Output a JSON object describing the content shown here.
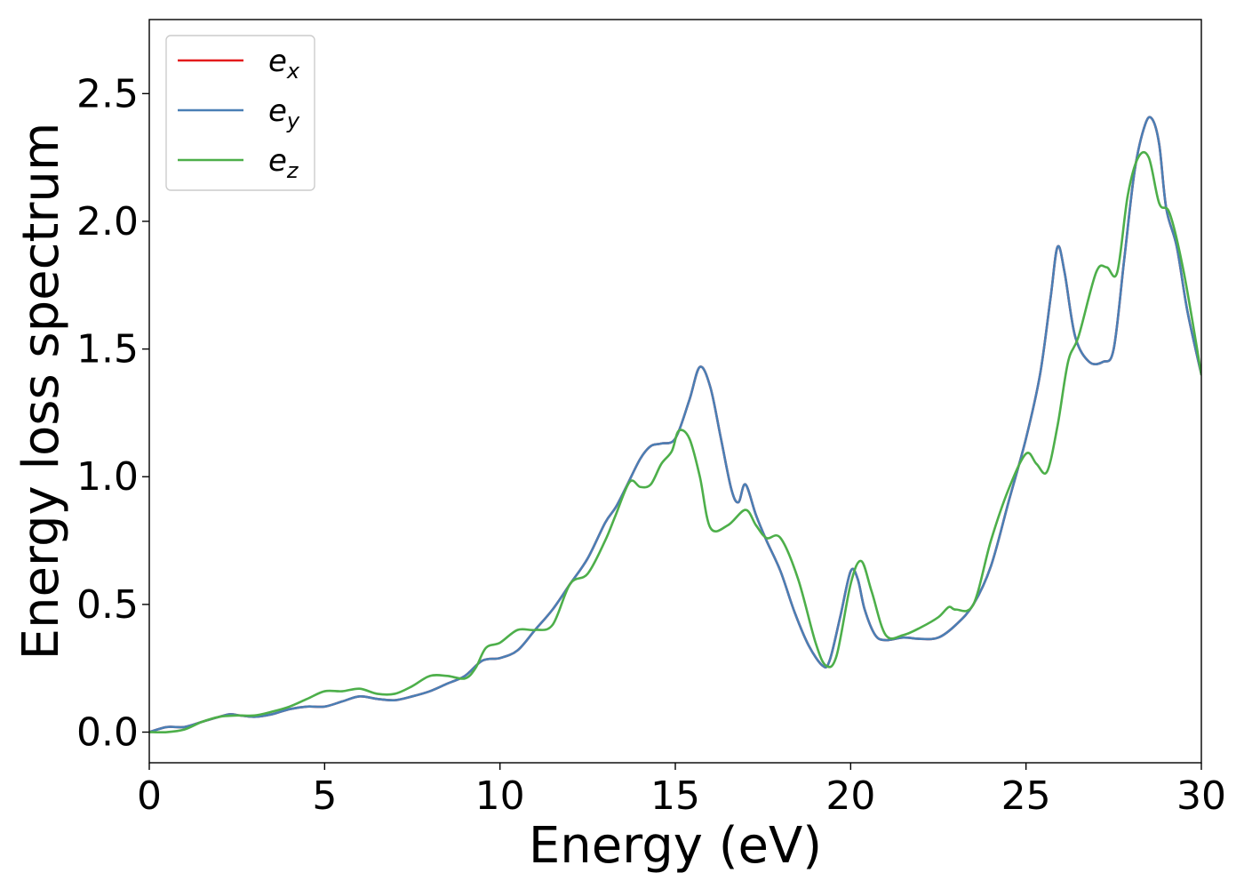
{
  "chart_data": {
    "type": "line",
    "title": "",
    "xlabel": "Energy (eV)",
    "ylabel": "Energy loss spectrum",
    "xlim": [
      0,
      30
    ],
    "ylim": [
      -0.12,
      2.79
    ],
    "xticks": [
      0,
      5,
      10,
      15,
      20,
      25,
      30
    ],
    "xtick_labels": [
      "0",
      "5",
      "10",
      "15",
      "20",
      "25",
      "30"
    ],
    "yticks": [
      0.0,
      0.5,
      1.0,
      1.5,
      2.0,
      2.5
    ],
    "ytick_labels": [
      "0.0",
      "0.5",
      "1.0",
      "1.5",
      "2.0",
      "2.5"
    ],
    "grid": false,
    "legend_position": "top-left",
    "series": [
      {
        "name": "e_x",
        "label_main": "e",
        "label_sub": "x",
        "color": "#e41a1c",
        "x": [
          0,
          0.5,
          1,
          1.5,
          2,
          2.3,
          2.6,
          3,
          3.5,
          4,
          4.5,
          5,
          5.5,
          6,
          6.5,
          7,
          7.5,
          8,
          8.5,
          9,
          9.5,
          10,
          10.5,
          11,
          11.5,
          12,
          12.5,
          13,
          13.3,
          13.6,
          14,
          14.3,
          14.6,
          15,
          15.4,
          15.7,
          16,
          16.3,
          16.6,
          16.8,
          17,
          17.3,
          17.6,
          18,
          18.4,
          18.8,
          19.2,
          19.4,
          19.7,
          20,
          20.2,
          20.4,
          20.7,
          21,
          21.5,
          22,
          22.5,
          23,
          23.5,
          24,
          24.5,
          25,
          25.4,
          25.7,
          25.9,
          26.1,
          26.4,
          26.8,
          27.2,
          27.5,
          27.8,
          28.1,
          28.4,
          28.6,
          28.8,
          29,
          29.3,
          29.6,
          30
        ],
        "y": [
          0.0,
          0.02,
          0.02,
          0.04,
          0.06,
          0.07,
          0.065,
          0.06,
          0.07,
          0.09,
          0.1,
          0.1,
          0.12,
          0.14,
          0.13,
          0.125,
          0.14,
          0.16,
          0.19,
          0.22,
          0.28,
          0.29,
          0.32,
          0.4,
          0.48,
          0.58,
          0.68,
          0.82,
          0.88,
          0.96,
          1.07,
          1.12,
          1.13,
          1.15,
          1.3,
          1.43,
          1.35,
          1.15,
          0.95,
          0.9,
          0.97,
          0.85,
          0.75,
          0.63,
          0.47,
          0.34,
          0.26,
          0.28,
          0.45,
          0.63,
          0.6,
          0.48,
          0.38,
          0.36,
          0.37,
          0.365,
          0.37,
          0.42,
          0.5,
          0.65,
          0.9,
          1.15,
          1.4,
          1.7,
          1.9,
          1.8,
          1.55,
          1.45,
          1.45,
          1.5,
          1.85,
          2.2,
          2.38,
          2.4,
          2.3,
          2.05,
          1.9,
          1.65,
          1.4
        ]
      },
      {
        "name": "e_y",
        "label_main": "e",
        "label_sub": "y",
        "color": "#4a7fb5",
        "x": [
          0,
          0.5,
          1,
          1.5,
          2,
          2.3,
          2.6,
          3,
          3.5,
          4,
          4.5,
          5,
          5.5,
          6,
          6.5,
          7,
          7.5,
          8,
          8.5,
          9,
          9.5,
          10,
          10.5,
          11,
          11.5,
          12,
          12.5,
          13,
          13.3,
          13.6,
          14,
          14.3,
          14.6,
          15,
          15.4,
          15.7,
          16,
          16.3,
          16.6,
          16.8,
          17,
          17.3,
          17.6,
          18,
          18.4,
          18.8,
          19.2,
          19.4,
          19.7,
          20,
          20.2,
          20.4,
          20.7,
          21,
          21.5,
          22,
          22.5,
          23,
          23.5,
          24,
          24.5,
          25,
          25.4,
          25.7,
          25.9,
          26.1,
          26.4,
          26.8,
          27.2,
          27.5,
          27.8,
          28.1,
          28.4,
          28.6,
          28.8,
          29,
          29.3,
          29.6,
          30
        ],
        "y": [
          0.0,
          0.02,
          0.02,
          0.04,
          0.06,
          0.07,
          0.065,
          0.06,
          0.07,
          0.09,
          0.1,
          0.1,
          0.12,
          0.14,
          0.13,
          0.125,
          0.14,
          0.16,
          0.19,
          0.22,
          0.28,
          0.29,
          0.32,
          0.4,
          0.48,
          0.58,
          0.68,
          0.82,
          0.88,
          0.96,
          1.07,
          1.12,
          1.13,
          1.15,
          1.3,
          1.43,
          1.35,
          1.15,
          0.95,
          0.9,
          0.97,
          0.85,
          0.75,
          0.63,
          0.47,
          0.34,
          0.26,
          0.28,
          0.45,
          0.63,
          0.6,
          0.48,
          0.38,
          0.36,
          0.37,
          0.365,
          0.37,
          0.42,
          0.5,
          0.65,
          0.9,
          1.15,
          1.4,
          1.7,
          1.9,
          1.8,
          1.55,
          1.45,
          1.45,
          1.5,
          1.85,
          2.2,
          2.38,
          2.4,
          2.3,
          2.05,
          1.9,
          1.65,
          1.4
        ]
      },
      {
        "name": "e_z",
        "label_main": "e",
        "label_sub": "z",
        "color": "#4daf4a",
        "x": [
          0,
          0.5,
          1,
          1.5,
          2,
          2.5,
          3,
          3.5,
          4,
          4.5,
          5,
          5.5,
          6,
          6.5,
          7,
          7.5,
          8,
          8.5,
          9,
          9.3,
          9.6,
          10,
          10.5,
          11,
          11.5,
          12,
          12.5,
          13,
          13.3,
          13.7,
          14,
          14.3,
          14.6,
          14.9,
          15.1,
          15.4,
          15.7,
          16,
          16.5,
          17,
          17.3,
          17.6,
          18,
          18.5,
          19,
          19.3,
          19.6,
          20,
          20.3,
          20.6,
          21,
          21.5,
          22,
          22.5,
          22.8,
          23,
          23.5,
          24,
          24.5,
          25,
          25.3,
          25.6,
          25.9,
          26.2,
          26.5,
          27,
          27.3,
          27.6,
          27.9,
          28.2,
          28.5,
          28.8,
          29.1,
          29.5,
          30
        ],
        "y": [
          0.0,
          0.0,
          0.01,
          0.04,
          0.06,
          0.065,
          0.065,
          0.08,
          0.1,
          0.13,
          0.16,
          0.16,
          0.17,
          0.15,
          0.15,
          0.18,
          0.22,
          0.22,
          0.21,
          0.25,
          0.33,
          0.35,
          0.4,
          0.4,
          0.42,
          0.58,
          0.62,
          0.75,
          0.85,
          0.98,
          0.96,
          0.97,
          1.05,
          1.1,
          1.18,
          1.15,
          1.0,
          0.8,
          0.81,
          0.87,
          0.81,
          0.76,
          0.76,
          0.6,
          0.35,
          0.26,
          0.3,
          0.58,
          0.67,
          0.55,
          0.38,
          0.38,
          0.41,
          0.45,
          0.49,
          0.48,
          0.5,
          0.75,
          0.95,
          1.09,
          1.05,
          1.02,
          1.2,
          1.45,
          1.55,
          1.8,
          1.82,
          1.8,
          2.1,
          2.25,
          2.25,
          2.07,
          2.03,
          1.8,
          1.4
        ]
      }
    ]
  }
}
